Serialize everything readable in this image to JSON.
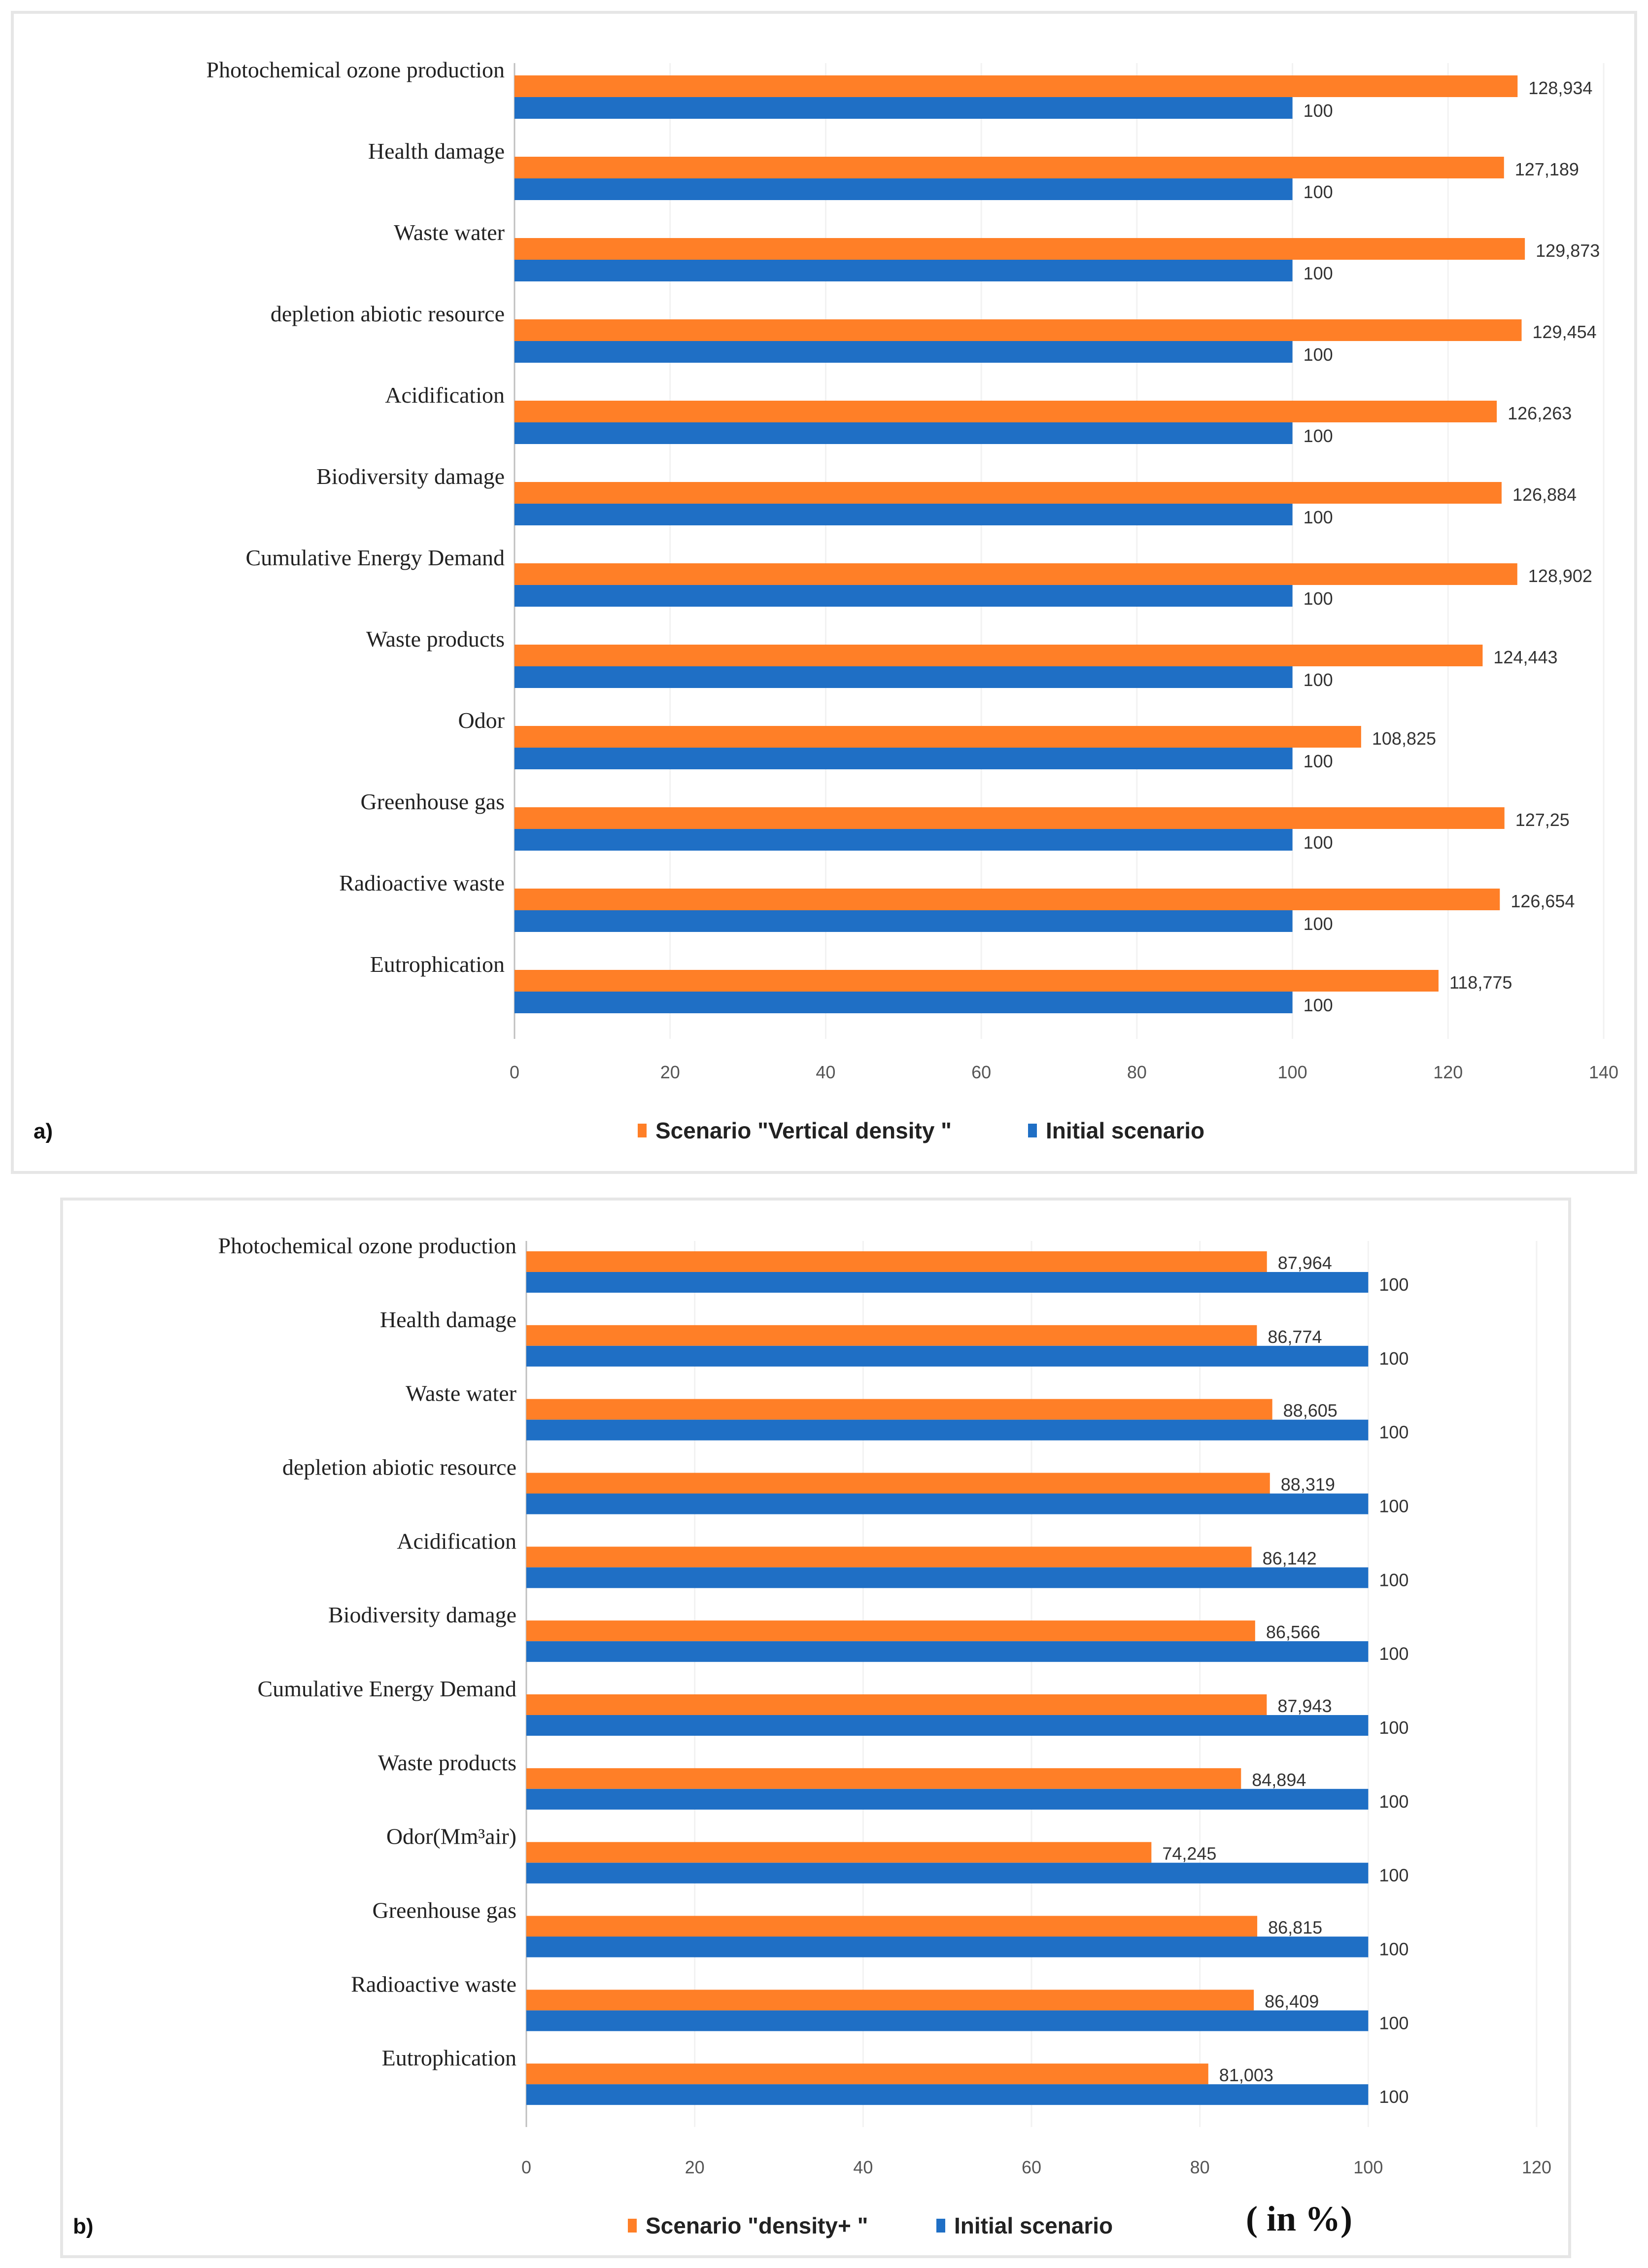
{
  "colors": {
    "scenario": "#FF7F27",
    "initial": "#1F6FC5",
    "axis": "#BFBFBF",
    "grid": "#F2F2F2"
  },
  "chart_data": [
    {
      "type": "bar",
      "orientation": "horizontal",
      "panel_label": "a)",
      "categories": [
        "Photochemical ozone production",
        "Health damage",
        "Waste water",
        "depletion abiotic resource",
        "Acidification",
        "Biodiversity damage",
        "Cumulative Energy Demand",
        "Waste products",
        "Odor",
        "Greenhouse gas",
        "Radioactive waste",
        "Eutrophication"
      ],
      "series": [
        {
          "name": "Scenario \"Vertical density \"",
          "color_key": "scenario",
          "values": [
            128.934,
            127.189,
            129.873,
            129.454,
            126.263,
            126.884,
            128.902,
            124.443,
            108.825,
            127.25,
            126.654,
            118.775
          ],
          "labels": [
            "128,934",
            "127,189",
            "129,873",
            "129,454",
            "126,263",
            "126,884",
            "128,902",
            "124,443",
            "108,825",
            "127,25",
            "126,654",
            "118,775"
          ]
        },
        {
          "name": "Initial scenario",
          "color_key": "initial",
          "values": [
            100,
            100,
            100,
            100,
            100,
            100,
            100,
            100,
            100,
            100,
            100,
            100
          ],
          "labels": [
            "100",
            "100",
            "100",
            "100",
            "100",
            "100",
            "100",
            "100",
            "100",
            "100",
            "100",
            "100"
          ]
        }
      ],
      "xlim": [
        0,
        140
      ],
      "xticks": [
        0,
        20,
        40,
        60,
        80,
        100,
        120,
        140
      ],
      "legend": "bottom-center",
      "unit_note": ""
    },
    {
      "type": "bar",
      "orientation": "horizontal",
      "panel_label": "b)",
      "categories": [
        "Photochemical ozone production",
        "Health damage",
        "Waste water",
        "depletion abiotic resource",
        "Acidification",
        "Biodiversity damage",
        "Cumulative Energy Demand",
        "Waste products",
        "Odor(Mm³air)",
        "Greenhouse gas",
        "Radioactive waste",
        "Eutrophication"
      ],
      "series": [
        {
          "name": "Scenario \"density+ \"",
          "color_key": "scenario",
          "values": [
            87.964,
            86.774,
            88.605,
            88.319,
            86.142,
            86.566,
            87.943,
            84.894,
            74.245,
            86.815,
            86.409,
            81.003
          ],
          "labels": [
            "87,964",
            "86,774",
            "88,605",
            "88,319",
            "86,142",
            "86,566",
            "87,943",
            "84,894",
            "74,245",
            "86,815",
            "86,409",
            "81,003"
          ]
        },
        {
          "name": "Initial scenario",
          "color_key": "initial",
          "values": [
            100,
            100,
            100,
            100,
            100,
            100,
            100,
            100,
            100,
            100,
            100,
            100
          ],
          "labels": [
            "100",
            "100",
            "100",
            "100",
            "100",
            "100",
            "100",
            "100",
            "100",
            "100",
            "100",
            "100"
          ]
        }
      ],
      "xlim": [
        0,
        120
      ],
      "xticks": [
        0,
        20,
        40,
        60,
        80,
        100,
        120
      ],
      "legend": "bottom-center",
      "unit_note": "( in %)"
    }
  ]
}
